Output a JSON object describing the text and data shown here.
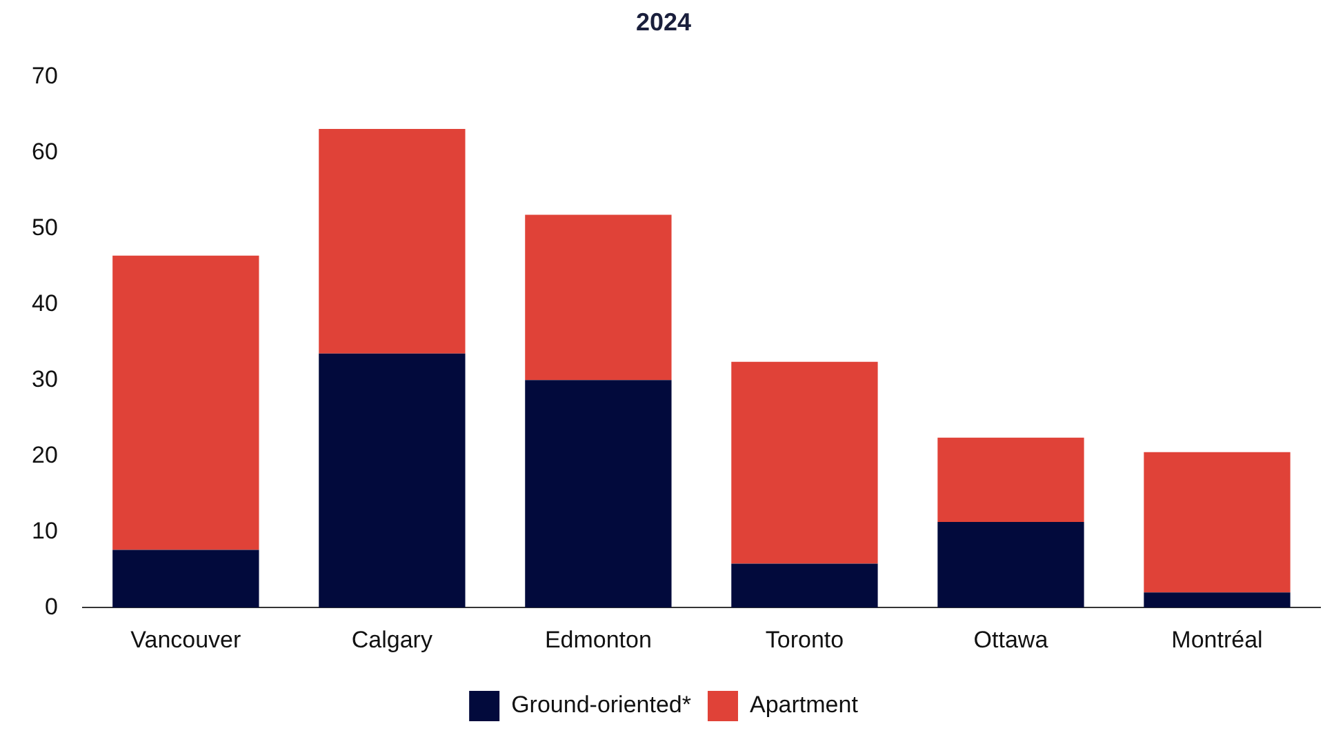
{
  "chart_data": {
    "type": "bar",
    "title": "2024",
    "stacked": true,
    "categories": [
      "Vancouver",
      "Calgary",
      "Edmonton",
      "Toronto",
      "Ottawa",
      "Montréal"
    ],
    "series": [
      {
        "name": "Ground-oriented*",
        "color": "#020a3c",
        "values": [
          7.6,
          33.5,
          30.0,
          5.8,
          11.3,
          2.0
        ]
      },
      {
        "name": "Apartment",
        "color": "#e04238",
        "values": [
          38.8,
          29.6,
          21.8,
          26.6,
          11.1,
          18.5
        ]
      }
    ],
    "ylim": [
      0,
      70
    ],
    "yticks": [
      0,
      10,
      20,
      30,
      40,
      50,
      60,
      70
    ],
    "grid": false,
    "legend": "bottom"
  }
}
